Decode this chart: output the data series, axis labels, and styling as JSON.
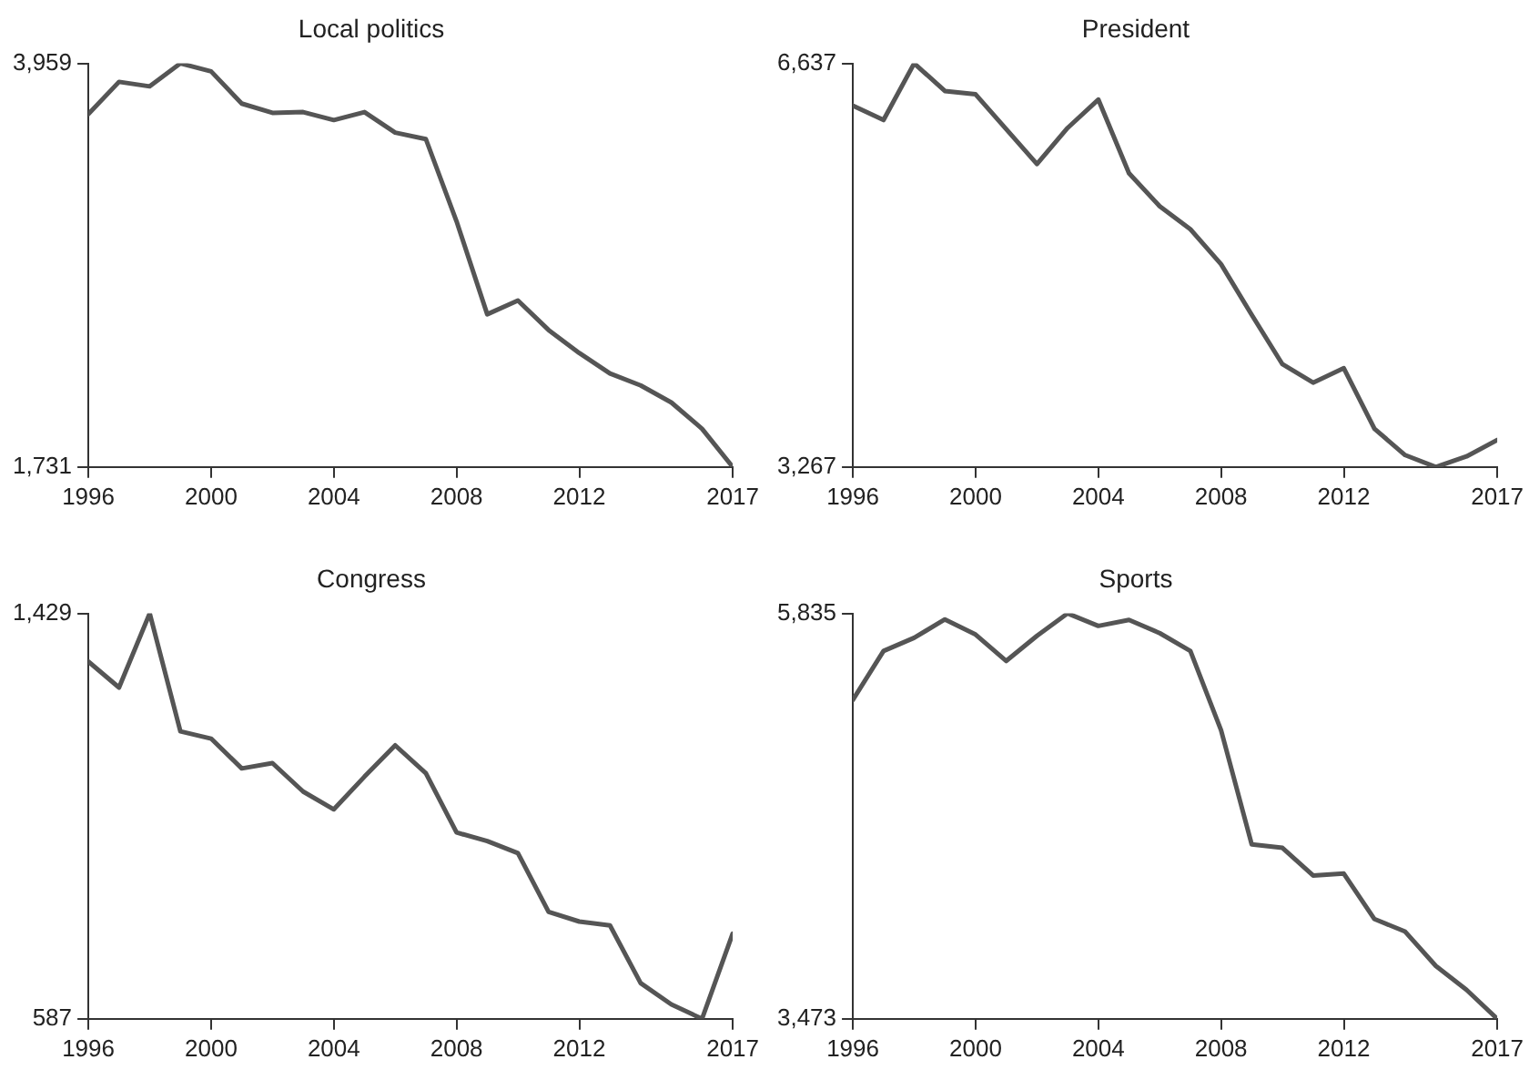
{
  "chart_data": [
    {
      "type": "line",
      "title": "Local politics",
      "x": [
        1996,
        1997,
        1998,
        1999,
        2000,
        2001,
        2002,
        2003,
        2004,
        2005,
        2006,
        2007,
        2008,
        2009,
        2010,
        2011,
        2012,
        2013,
        2014,
        2015,
        2016,
        2017
      ],
      "series": [
        {
          "color": "#555555",
          "values": [
            3679,
            3857,
            3832,
            3959,
            3915,
            3737,
            3686,
            3690,
            3646,
            3690,
            3577,
            3541,
            3087,
            2574,
            2650,
            2487,
            2360,
            2247,
            2181,
            2087,
            1942,
            1731
          ]
        }
      ],
      "xlim": [
        1996,
        2017
      ],
      "xticks": [
        1996,
        2000,
        2004,
        2008,
        2012,
        2017
      ],
      "ylim": [
        1731,
        3959
      ],
      "yticks": [
        {
          "value": 1731,
          "label": "1,731"
        },
        {
          "value": 3959,
          "label": "3,959"
        }
      ],
      "grid": false,
      "legend": false,
      "marker": "none",
      "line_style": "solid"
    },
    {
      "type": "line",
      "title": "President",
      "x": [
        1996,
        1997,
        1998,
        1999,
        2000,
        2001,
        2002,
        2003,
        2004,
        2005,
        2006,
        2007,
        2008,
        2009,
        2010,
        2011,
        2012,
        2013,
        2014,
        2015,
        2016,
        2017
      ],
      "series": [
        {
          "color": "#555555",
          "values": [
            6285,
            6164,
            6637,
            6406,
            6379,
            6087,
            5796,
            6098,
            6335,
            5719,
            5444,
            5252,
            4960,
            4537,
            4125,
            3971,
            4092,
            3586,
            3366,
            3267,
            3355,
            3493
          ]
        }
      ],
      "xlim": [
        1996,
        2017
      ],
      "xticks": [
        1996,
        2000,
        2004,
        2008,
        2012,
        2017
      ],
      "ylim": [
        3267,
        6637
      ],
      "yticks": [
        {
          "value": 3267,
          "label": "3,267"
        },
        {
          "value": 6637,
          "label": "6,637"
        }
      ],
      "grid": false,
      "legend": false,
      "marker": "none",
      "line_style": "solid"
    },
    {
      "type": "line",
      "title": "Congress",
      "x": [
        1996,
        1997,
        1998,
        1999,
        2000,
        2001,
        2002,
        2003,
        2004,
        2005,
        2006,
        2007,
        2008,
        2009,
        2010,
        2011,
        2012,
        2013,
        2014,
        2015,
        2016,
        2017
      ],
      "series": [
        {
          "color": "#555555",
          "values": [
            1329,
            1275,
            1429,
            1184,
            1169,
            1107,
            1118,
            1059,
            1022,
            1090,
            1155,
            1097,
            974,
            956,
            931,
            809,
            789,
            781,
            661,
            617,
            587,
            764
          ]
        }
      ],
      "xlim": [
        1996,
        2017
      ],
      "xticks": [
        1996,
        2000,
        2004,
        2008,
        2012,
        2017
      ],
      "ylim": [
        587,
        1429
      ],
      "yticks": [
        587,
        {
          "value": 1429,
          "label": "1,429"
        }
      ],
      "grid": false,
      "legend": false,
      "marker": "none",
      "line_style": "solid"
    },
    {
      "type": "line",
      "title": "Sports",
      "x": [
        1996,
        1997,
        1998,
        1999,
        2000,
        2001,
        2002,
        2003,
        2004,
        2005,
        2006,
        2007,
        2008,
        2009,
        2010,
        2011,
        2012,
        2013,
        2014,
        2015,
        2016,
        2017
      ],
      "series": [
        {
          "color": "#555555",
          "values": [
            5331,
            5616,
            5693,
            5800,
            5712,
            5558,
            5704,
            5835,
            5762,
            5797,
            5720,
            5616,
            5154,
            4489,
            4469,
            4308,
            4319,
            4054,
            3981,
            3781,
            3642,
            3473
          ]
        }
      ],
      "xlim": [
        1996,
        2017
      ],
      "xticks": [
        1996,
        2000,
        2004,
        2008,
        2012,
        2017
      ],
      "ylim": [
        3473,
        5835
      ],
      "yticks": [
        {
          "value": 3473,
          "label": "3,473"
        },
        {
          "value": 5835,
          "label": "5,835"
        }
      ],
      "grid": false,
      "legend": false,
      "marker": "none",
      "line_style": "solid"
    }
  ]
}
